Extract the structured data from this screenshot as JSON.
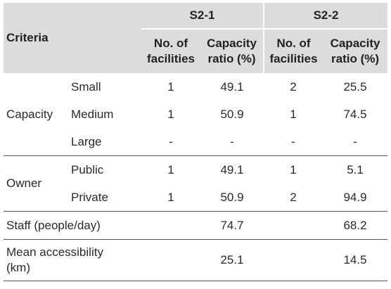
{
  "header": {
    "criteria": "Criteria",
    "groups": [
      "S2-1",
      "S2-2"
    ],
    "sub_col1_line1": "No. of",
    "sub_col1_line2": "facilities",
    "sub_col2_line1": "Capacity",
    "sub_col2_line2": "ratio (%)"
  },
  "capacity": {
    "label": "Capacity",
    "rows": [
      {
        "name": "Small",
        "s21_fac": "1",
        "s21_ratio": "49.1",
        "s22_fac": "2",
        "s22_ratio": "25.5"
      },
      {
        "name": "Medium",
        "s21_fac": "1",
        "s21_ratio": "50.9",
        "s22_fac": "1",
        "s22_ratio": "74.5"
      },
      {
        "name": "Large",
        "s21_fac": "-",
        "s21_ratio": "-",
        "s22_fac": "-",
        "s22_ratio": "-"
      }
    ]
  },
  "owner": {
    "label": "Owner",
    "rows": [
      {
        "name": "Public",
        "s21_fac": "1",
        "s21_ratio": "49.1",
        "s22_fac": "1",
        "s22_ratio": "5.1"
      },
      {
        "name": "Private",
        "s21_fac": "1",
        "s21_ratio": "50.9",
        "s22_fac": "2",
        "s22_ratio": "94.9"
      }
    ]
  },
  "staff": {
    "label": "Staff (people/day)",
    "s21": "74.7",
    "s22": "68.2"
  },
  "accessibility": {
    "label_line1": "Mean accessibility",
    "label_line2": "(km)",
    "s21": "25.1",
    "s22": "14.5"
  }
}
